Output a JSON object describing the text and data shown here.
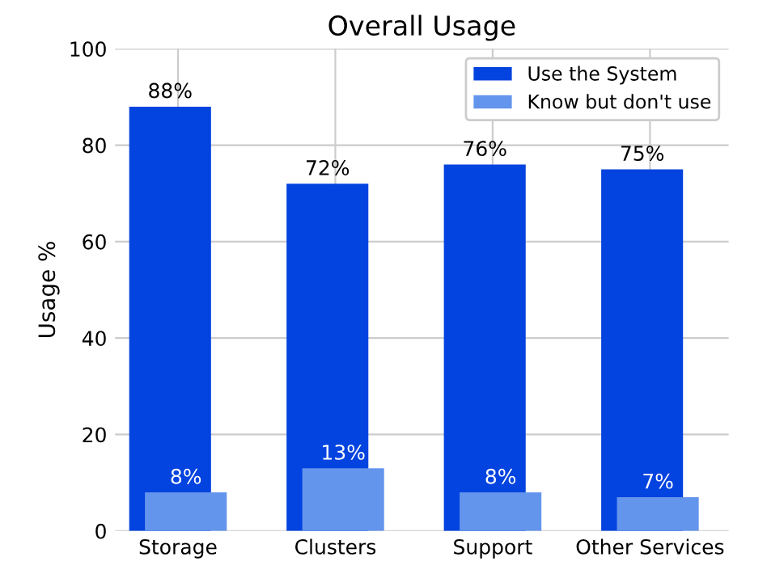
{
  "chart_data": {
    "type": "bar",
    "title": "Overall Usage",
    "ylabel": "Usage %",
    "categories": [
      "Storage",
      "Clusters",
      "Support",
      "Other Services"
    ],
    "series": [
      {
        "name": "Use the System",
        "color": "#0343df",
        "values": [
          88,
          72,
          76,
          75
        ],
        "value_labels": [
          "88%",
          "72%",
          "76%",
          "75%"
        ]
      },
      {
        "name": "Know but don't use",
        "color": "#6495ed",
        "values": [
          8,
          13,
          8,
          7
        ],
        "value_labels": [
          "8%",
          "13%",
          "8%",
          "7%"
        ]
      }
    ],
    "ylim": [
      0,
      100
    ],
    "yticks": [
      0,
      20,
      40,
      60,
      80,
      100
    ],
    "grid": true,
    "legend": "top right"
  }
}
